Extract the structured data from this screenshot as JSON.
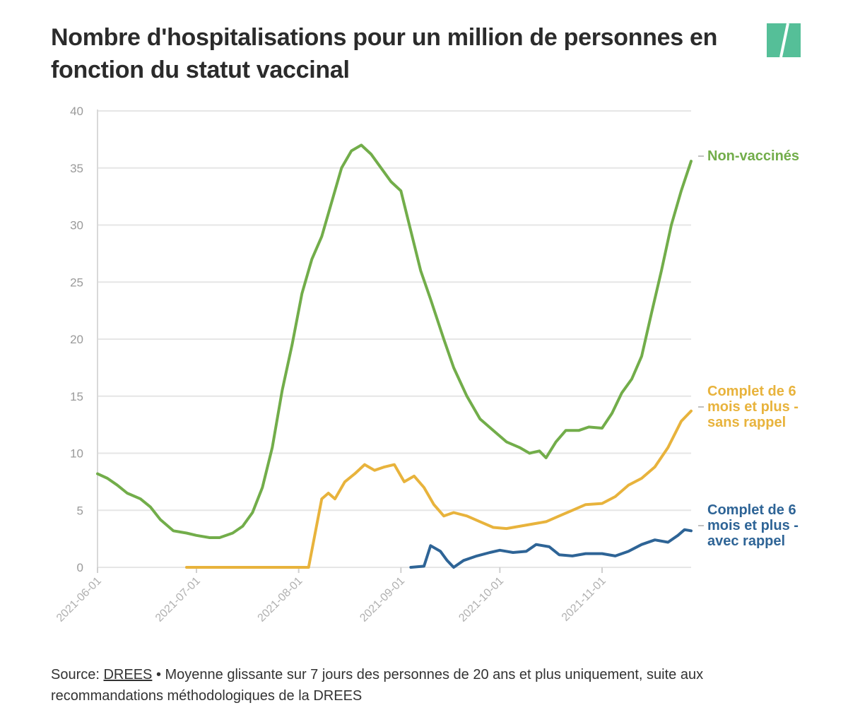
{
  "title": "Nombre d'hospitalisations pour un million de personnes en fonction du statut vaccinal",
  "logo": {
    "icon": "huffpost-slash-logo",
    "color": "#55bf98"
  },
  "source": {
    "prefix": "Source: ",
    "link_text": "DREES",
    "suffix": " • Moyenne glissante sur 7 jours des personnes de 20 ans et plus uniquement, suite aux recommandations méthodologiques de la DREES"
  },
  "chart_data": {
    "type": "line",
    "ylim": [
      0,
      40
    ],
    "yticks": [
      0,
      5,
      10,
      15,
      20,
      25,
      30,
      35,
      40
    ],
    "xlim": [
      "2021-06-01",
      "2021-11-28"
    ],
    "xticks": [
      "2021-06-01",
      "2021-07-01",
      "2021-08-01",
      "2021-09-01",
      "2021-10-01",
      "2021-11-01"
    ],
    "grid": true,
    "legend": "direct labels at right end of lines",
    "series": [
      {
        "name": "Non-vaccinés",
        "color": "#72ad4a",
        "points": [
          [
            "2021-06-01",
            8.2
          ],
          [
            "2021-06-04",
            7.8
          ],
          [
            "2021-06-07",
            7.2
          ],
          [
            "2021-06-10",
            6.5
          ],
          [
            "2021-06-14",
            6.0
          ],
          [
            "2021-06-17",
            5.3
          ],
          [
            "2021-06-20",
            4.2
          ],
          [
            "2021-06-24",
            3.2
          ],
          [
            "2021-06-28",
            3.0
          ],
          [
            "2021-07-01",
            2.8
          ],
          [
            "2021-07-05",
            2.6
          ],
          [
            "2021-07-08",
            2.6
          ],
          [
            "2021-07-12",
            3.0
          ],
          [
            "2021-07-15",
            3.6
          ],
          [
            "2021-07-18",
            4.8
          ],
          [
            "2021-07-21",
            7.0
          ],
          [
            "2021-07-24",
            10.5
          ],
          [
            "2021-07-27",
            15.5
          ],
          [
            "2021-07-30",
            19.5
          ],
          [
            "2021-08-02",
            24.0
          ],
          [
            "2021-08-05",
            27.0
          ],
          [
            "2021-08-08",
            29.0
          ],
          [
            "2021-08-11",
            32.0
          ],
          [
            "2021-08-14",
            35.0
          ],
          [
            "2021-08-17",
            36.5
          ],
          [
            "2021-08-20",
            37.0
          ],
          [
            "2021-08-23",
            36.2
          ],
          [
            "2021-08-26",
            35.0
          ],
          [
            "2021-08-29",
            33.8
          ],
          [
            "2021-09-01",
            33.0
          ],
          [
            "2021-09-04",
            29.5
          ],
          [
            "2021-09-07",
            26.0
          ],
          [
            "2021-09-10",
            23.5
          ],
          [
            "2021-09-14",
            20.0
          ],
          [
            "2021-09-17",
            17.5
          ],
          [
            "2021-09-21",
            15.0
          ],
          [
            "2021-09-25",
            13.0
          ],
          [
            "2021-09-29",
            12.0
          ],
          [
            "2021-10-03",
            11.0
          ],
          [
            "2021-10-07",
            10.5
          ],
          [
            "2021-10-10",
            10.0
          ],
          [
            "2021-10-13",
            10.2
          ],
          [
            "2021-10-15",
            9.6
          ],
          [
            "2021-10-18",
            11.0
          ],
          [
            "2021-10-21",
            12.0
          ],
          [
            "2021-10-25",
            12.0
          ],
          [
            "2021-10-28",
            12.3
          ],
          [
            "2021-11-01",
            12.2
          ],
          [
            "2021-11-04",
            13.5
          ],
          [
            "2021-11-07",
            15.3
          ],
          [
            "2021-11-10",
            16.5
          ],
          [
            "2021-11-13",
            18.5
          ],
          [
            "2021-11-16",
            22.3
          ],
          [
            "2021-11-19",
            26.0
          ],
          [
            "2021-11-22",
            30.0
          ],
          [
            "2021-11-25",
            33.0
          ],
          [
            "2021-11-28",
            35.6
          ]
        ]
      },
      {
        "name": "Complet de 6 mois et plus - sans rappel",
        "color": "#e8b33c",
        "points": [
          [
            "2021-06-28",
            0.0
          ],
          [
            "2021-07-15",
            0.0
          ],
          [
            "2021-08-04",
            0.0
          ],
          [
            "2021-08-06",
            3.0
          ],
          [
            "2021-08-08",
            6.0
          ],
          [
            "2021-08-10",
            6.5
          ],
          [
            "2021-08-12",
            6.0
          ],
          [
            "2021-08-15",
            7.5
          ],
          [
            "2021-08-18",
            8.2
          ],
          [
            "2021-08-21",
            9.0
          ],
          [
            "2021-08-24",
            8.5
          ],
          [
            "2021-08-27",
            8.8
          ],
          [
            "2021-08-30",
            9.0
          ],
          [
            "2021-09-02",
            7.5
          ],
          [
            "2021-09-05",
            8.0
          ],
          [
            "2021-09-08",
            7.0
          ],
          [
            "2021-09-11",
            5.5
          ],
          [
            "2021-09-14",
            4.5
          ],
          [
            "2021-09-17",
            4.8
          ],
          [
            "2021-09-21",
            4.5
          ],
          [
            "2021-09-25",
            4.0
          ],
          [
            "2021-09-29",
            3.5
          ],
          [
            "2021-10-03",
            3.4
          ],
          [
            "2021-10-07",
            3.6
          ],
          [
            "2021-10-11",
            3.8
          ],
          [
            "2021-10-15",
            4.0
          ],
          [
            "2021-10-19",
            4.5
          ],
          [
            "2021-10-23",
            5.0
          ],
          [
            "2021-10-27",
            5.5
          ],
          [
            "2021-11-01",
            5.6
          ],
          [
            "2021-11-05",
            6.2
          ],
          [
            "2021-11-09",
            7.2
          ],
          [
            "2021-11-13",
            7.8
          ],
          [
            "2021-11-17",
            8.8
          ],
          [
            "2021-11-21",
            10.5
          ],
          [
            "2021-11-25",
            12.8
          ],
          [
            "2021-11-28",
            13.7
          ]
        ]
      },
      {
        "name": "Complet de 6 mois et plus - avec rappel",
        "color": "#2e6496",
        "points": [
          [
            "2021-09-04",
            0.0
          ],
          [
            "2021-09-08",
            0.1
          ],
          [
            "2021-09-10",
            1.9
          ],
          [
            "2021-09-13",
            1.4
          ],
          [
            "2021-09-15",
            0.6
          ],
          [
            "2021-09-17",
            0.0
          ],
          [
            "2021-09-20",
            0.6
          ],
          [
            "2021-09-24",
            1.0
          ],
          [
            "2021-09-28",
            1.3
          ],
          [
            "2021-10-01",
            1.5
          ],
          [
            "2021-10-05",
            1.3
          ],
          [
            "2021-10-09",
            1.4
          ],
          [
            "2021-10-12",
            2.0
          ],
          [
            "2021-10-16",
            1.8
          ],
          [
            "2021-10-19",
            1.1
          ],
          [
            "2021-10-23",
            1.0
          ],
          [
            "2021-10-27",
            1.2
          ],
          [
            "2021-11-01",
            1.2
          ],
          [
            "2021-11-05",
            1.0
          ],
          [
            "2021-11-09",
            1.4
          ],
          [
            "2021-11-13",
            2.0
          ],
          [
            "2021-11-17",
            2.4
          ],
          [
            "2021-11-21",
            2.2
          ],
          [
            "2021-11-24",
            2.8
          ],
          [
            "2021-11-26",
            3.3
          ],
          [
            "2021-11-28",
            3.2
          ]
        ]
      }
    ],
    "labels": [
      {
        "series": 0,
        "lines": [
          "Non-vaccinés"
        ]
      },
      {
        "series": 1,
        "lines": [
          "Complet de 6",
          "mois et plus -",
          "sans rappel"
        ]
      },
      {
        "series": 2,
        "lines": [
          "Complet de 6",
          "mois et plus -",
          "avec rappel"
        ]
      }
    ]
  }
}
